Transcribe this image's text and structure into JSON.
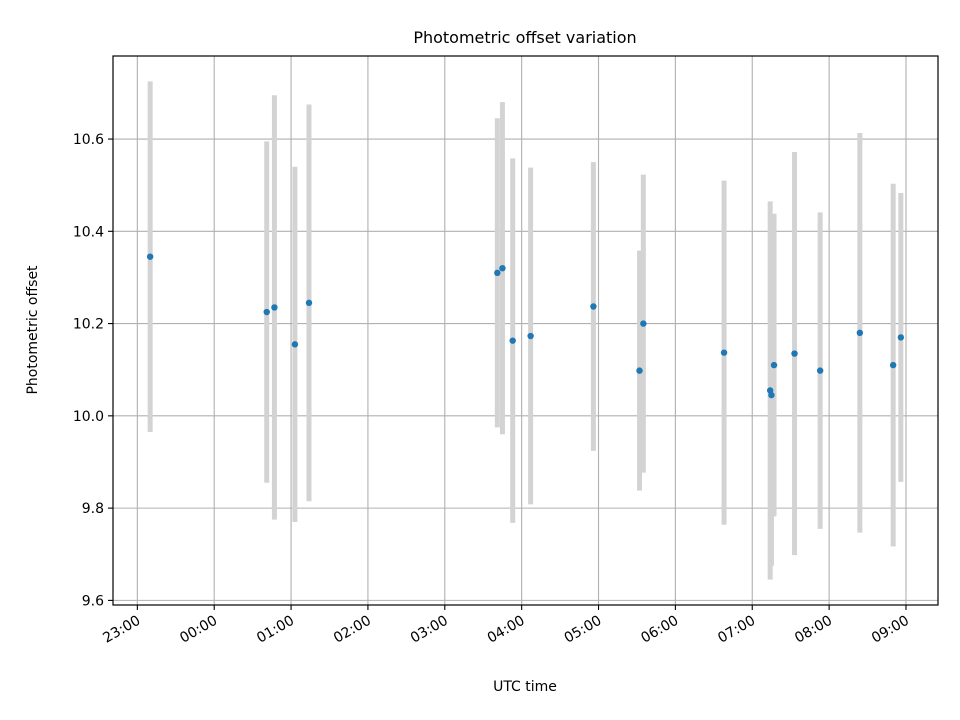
{
  "chart_data": {
    "type": "scatter",
    "title": "Photometric offset variation",
    "xlabel": "UTC time",
    "ylabel": "Photometric offset",
    "xlim": [
      "22:41",
      "09:25"
    ],
    "ylim": [
      9.59,
      10.78
    ],
    "x_ticks": [
      "23:00",
      "00:00",
      "01:00",
      "02:00",
      "03:00",
      "04:00",
      "05:00",
      "06:00",
      "07:00",
      "08:00",
      "09:00"
    ],
    "y_ticks": [
      "9.6",
      "9.8",
      "10.0",
      "10.2",
      "10.4",
      "10.6"
    ],
    "y_tick_values": [
      9.6,
      9.8,
      10.0,
      10.2,
      10.4,
      10.6
    ],
    "grid": true,
    "colors": {
      "point": "#1f77b4",
      "errorbar": "#d3d3d3",
      "grid": "#b0b0b0"
    },
    "points": [
      {
        "x": "23:10",
        "y": 10.345,
        "yerr": 0.38
      },
      {
        "x": "00:41",
        "y": 10.225,
        "yerr": 0.37
      },
      {
        "x": "00:47",
        "y": 10.235,
        "yerr": 0.46
      },
      {
        "x": "01:03",
        "y": 10.155,
        "yerr": 0.385
      },
      {
        "x": "01:14",
        "y": 10.245,
        "yerr": 0.43
      },
      {
        "x": "03:41",
        "y": 10.31,
        "yerr": 0.335
      },
      {
        "x": "03:45",
        "y": 10.32,
        "yerr": 0.36
      },
      {
        "x": "03:53",
        "y": 10.163,
        "yerr": 0.395
      },
      {
        "x": "04:07",
        "y": 10.173,
        "yerr": 0.365
      },
      {
        "x": "04:56",
        "y": 10.237,
        "yerr": 0.313
      },
      {
        "x": "05:32",
        "y": 10.098,
        "yerr": 0.26
      },
      {
        "x": "05:35",
        "y": 10.2,
        "yerr": 0.323
      },
      {
        "x": "06:38",
        "y": 10.137,
        "yerr": 0.373
      },
      {
        "x": "07:14",
        "y": 10.055,
        "yerr": 0.41
      },
      {
        "x": "07:15",
        "y": 10.045,
        "yerr": 0.37
      },
      {
        "x": "07:17",
        "y": 10.11,
        "yerr": 0.328
      },
      {
        "x": "07:33",
        "y": 10.135,
        "yerr": 0.437
      },
      {
        "x": "07:53",
        "y": 10.098,
        "yerr": 0.343
      },
      {
        "x": "08:24",
        "y": 10.18,
        "yerr": 0.433
      },
      {
        "x": "08:50",
        "y": 10.11,
        "yerr": 0.393
      },
      {
        "x": "08:56",
        "y": 10.17,
        "yerr": 0.313
      }
    ]
  }
}
